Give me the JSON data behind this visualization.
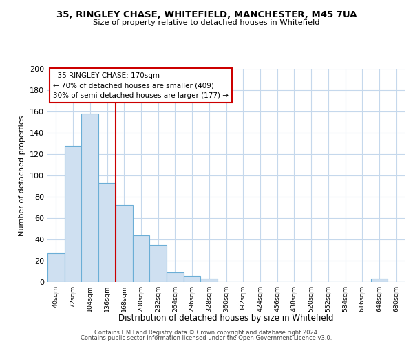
{
  "title": "35, RINGLEY CHASE, WHITEFIELD, MANCHESTER, M45 7UA",
  "subtitle": "Size of property relative to detached houses in Whitefield",
  "xlabel": "Distribution of detached houses by size in Whitefield",
  "ylabel": "Number of detached properties",
  "bar_labels": [
    "40sqm",
    "72sqm",
    "104sqm",
    "136sqm",
    "168sqm",
    "200sqm",
    "232sqm",
    "264sqm",
    "296sqm",
    "328sqm",
    "360sqm",
    "392sqm",
    "424sqm",
    "456sqm",
    "488sqm",
    "520sqm",
    "552sqm",
    "584sqm",
    "616sqm",
    "648sqm",
    "680sqm"
  ],
  "bar_values": [
    27,
    128,
    158,
    93,
    72,
    44,
    35,
    9,
    6,
    3,
    0,
    0,
    0,
    0,
    0,
    0,
    0,
    0,
    0,
    3,
    0
  ],
  "bar_color": "#cfe0f1",
  "bar_edge_color": "#6baed6",
  "vline_x": 3.5,
  "vline_color": "#cc0000",
  "annotation_title": "35 RINGLEY CHASE: 170sqm",
  "annotation_line1": "← 70% of detached houses are smaller (409)",
  "annotation_line2": "30% of semi-detached houses are larger (177) →",
  "annotation_box_color": "#ffffff",
  "annotation_box_edge": "#cc0000",
  "ylim": [
    0,
    200
  ],
  "yticks": [
    0,
    20,
    40,
    60,
    80,
    100,
    120,
    140,
    160,
    180,
    200
  ],
  "footer1": "Contains HM Land Registry data © Crown copyright and database right 2024.",
  "footer2": "Contains public sector information licensed under the Open Government Licence v3.0.",
  "bg_color": "#ffffff",
  "grid_color": "#c5d8ec"
}
